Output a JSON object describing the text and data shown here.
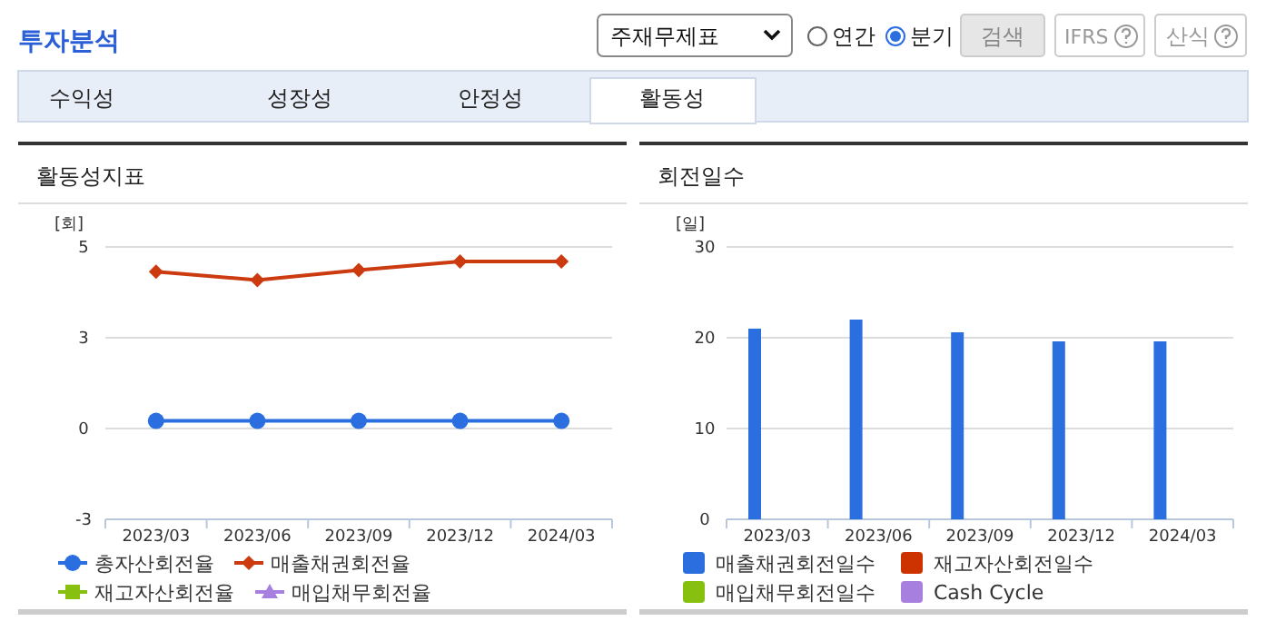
{
  "chart_data": [
    {
      "type": "other",
      "title": "투자분석",
      "annotations": [
        "주재무제표",
        "연간",
        "분기",
        "검색",
        "IFRS",
        "산식",
        "수익성",
        "성장성",
        "안정성",
        "활동성"
      ]
    },
    {
      "type": "line",
      "title": "활동성지표",
      "ylabel": "[회]",
      "categories": [
        "2023/03",
        "2023/06",
        "2023/09",
        "2023/12",
        "2024/03"
      ],
      "ylim": [
        -2.5,
        5
      ],
      "yticks": [
        {
          "value": -2.5,
          "label": "-3"
        },
        0,
        {
          "value": 2.5,
          "label": "3"
        },
        5
      ],
      "grid": "y",
      "legend": "bottom",
      "line_style": "solid",
      "series": [
        {
          "name": "총자산회전율",
          "color": "#2a6ee0",
          "marker": "circle",
          "values": [
            0.21,
            0.21,
            0.21,
            0.21,
            0.21
          ]
        },
        {
          "name": "매출채권회전율",
          "color": "#cc3a10",
          "marker": "diamond",
          "values": [
            4.32,
            4.09,
            4.36,
            4.6,
            4.6
          ]
        },
        {
          "name": "재고자산회전율",
          "color": "#88c010",
          "marker": "square",
          "values": [
            null,
            null,
            null,
            null,
            null
          ]
        },
        {
          "name": "매입채무회전율",
          "color": "#a67fdf",
          "marker": "triangle",
          "values": [
            null,
            null,
            null,
            null,
            null
          ]
        }
      ]
    },
    {
      "type": "bar",
      "title": "회전일수",
      "ylabel": "[일]",
      "categories": [
        "2023/03",
        "2023/06",
        "2023/09",
        "2023/12",
        "2024/03"
      ],
      "ylim": [
        0,
        30
      ],
      "yticks": [
        0,
        10,
        20,
        30
      ],
      "grid": "y",
      "legend": "bottom",
      "series": [
        {
          "name": "매출채권회전일수",
          "color": "#2a6ee0",
          "values": [
            21.0,
            22.0,
            20.6,
            19.6,
            19.6
          ]
        },
        {
          "name": "재고자산회전일수",
          "color": "#cc3300",
          "values": [
            null,
            null,
            null,
            null,
            null
          ]
        },
        {
          "name": "매입채무회전일수",
          "color": "#88c010",
          "values": [
            null,
            null,
            null,
            null,
            null
          ]
        },
        {
          "name": "Cash Cycle",
          "color": "#a67fdf",
          "values": [
            null,
            null,
            null,
            null,
            null
          ]
        }
      ]
    }
  ]
}
